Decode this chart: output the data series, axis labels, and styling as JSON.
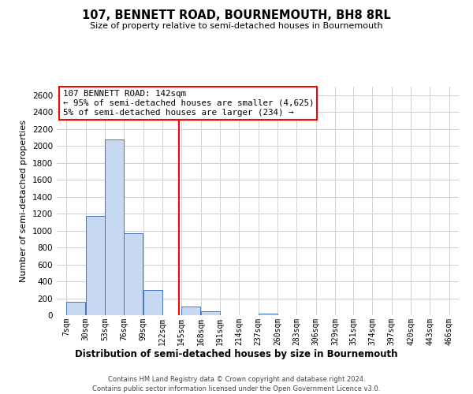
{
  "title": "107, BENNETT ROAD, BOURNEMOUTH, BH8 8RL",
  "subtitle": "Size of property relative to semi-detached houses in Bournemouth",
  "xlabel": "Distribution of semi-detached houses by size in Bournemouth",
  "ylabel": "Number of semi-detached properties",
  "bin_edges": [
    7,
    30,
    53,
    76,
    99,
    122,
    145,
    168,
    191,
    214,
    237,
    260,
    283,
    306,
    329,
    351,
    374,
    397,
    420,
    443,
    466
  ],
  "bin_labels": [
    "7sqm",
    "30sqm",
    "53sqm",
    "76sqm",
    "99sqm",
    "122sqm",
    "145sqm",
    "168sqm",
    "191sqm",
    "214sqm",
    "237sqm",
    "260sqm",
    "283sqm",
    "306sqm",
    "329sqm",
    "351sqm",
    "374sqm",
    "397sqm",
    "420sqm",
    "443sqm",
    "466sqm"
  ],
  "bar_heights": [
    160,
    1170,
    2080,
    970,
    295,
    0,
    100,
    45,
    0,
    0,
    20,
    0,
    0,
    0,
    0,
    0,
    0,
    0,
    0,
    0
  ],
  "bar_color": "#c6d9f1",
  "bar_edge_color": "#4472c4",
  "vline_x": 142,
  "vline_color": "red",
  "ylim": [
    0,
    2700
  ],
  "yticks": [
    0,
    200,
    400,
    600,
    800,
    1000,
    1200,
    1400,
    1600,
    1800,
    2000,
    2200,
    2400,
    2600
  ],
  "annotation_title": "107 BENNETT ROAD: 142sqm",
  "annotation_line1": "← 95% of semi-detached houses are smaller (4,625)",
  "annotation_line2": "5% of semi-detached houses are larger (234) →",
  "annotation_box_color": "red",
  "footer_line1": "Contains HM Land Registry data © Crown copyright and database right 2024.",
  "footer_line2": "Contains public sector information licensed under the Open Government Licence v3.0.",
  "background_color": "white",
  "grid_color": "#d0d0d0"
}
